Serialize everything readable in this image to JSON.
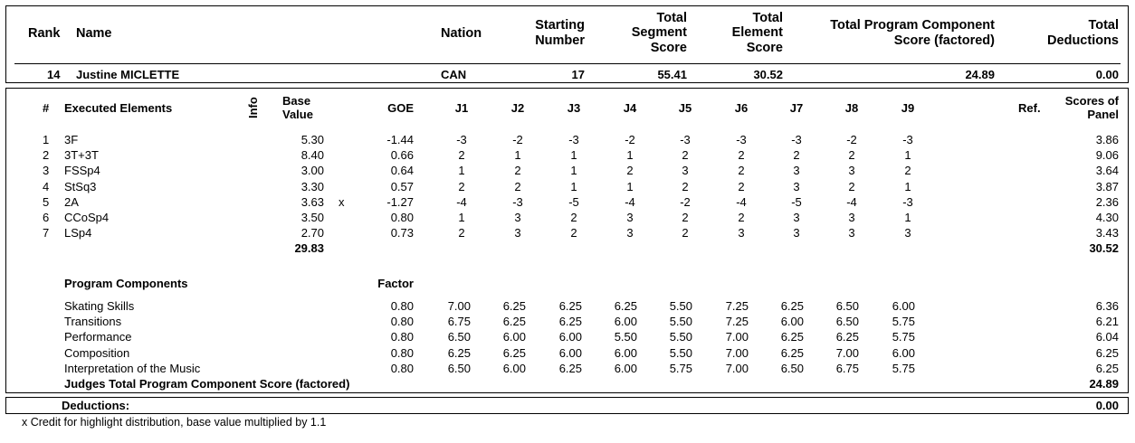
{
  "header": {
    "rank_label": "Rank",
    "name_label": "Name",
    "nation_label": "Nation",
    "starting_number_label": [
      "Starting",
      "Number"
    ],
    "tss_label": [
      "Total",
      "Segment",
      "Score"
    ],
    "tes_label": [
      "Total",
      "Element",
      "Score"
    ],
    "pcs_label": [
      "Total Program Component",
      "Score (factored)"
    ],
    "ded_label": [
      "Total",
      "Deductions"
    ]
  },
  "skater": {
    "rank": "14",
    "name": "Justine MICLETTE",
    "nation": "CAN",
    "starting_number": "17",
    "total_segment_score": "55.41",
    "total_element_score": "30.52",
    "total_pcs": "24.89",
    "total_deductions": "0.00"
  },
  "elements_header": {
    "num": "#",
    "executed": "Executed Elements",
    "info": "Info",
    "base_value": [
      "Base",
      "Value"
    ],
    "goe": "GOE",
    "judges": [
      "J1",
      "J2",
      "J3",
      "J4",
      "J5",
      "J6",
      "J7",
      "J8",
      "J9"
    ],
    "ref": "Ref.",
    "scores_of_panel": [
      "Scores of",
      "Panel"
    ]
  },
  "elements": [
    {
      "num": "1",
      "name": "3F",
      "info": "",
      "base": "5.30",
      "goe": "-1.44",
      "j": [
        "-3",
        "-2",
        "-3",
        "-2",
        "-3",
        "-3",
        "-3",
        "-2",
        "-3"
      ],
      "score": "3.86"
    },
    {
      "num": "2",
      "name": "3T+3T",
      "info": "",
      "base": "8.40",
      "goe": "0.66",
      "j": [
        "2",
        "1",
        "1",
        "1",
        "2",
        "2",
        "2",
        "2",
        "1"
      ],
      "score": "9.06"
    },
    {
      "num": "3",
      "name": "FSSp4",
      "info": "",
      "base": "3.00",
      "goe": "0.64",
      "j": [
        "1",
        "2",
        "1",
        "2",
        "3",
        "2",
        "3",
        "3",
        "2"
      ],
      "score": "3.64"
    },
    {
      "num": "4",
      "name": "StSq3",
      "info": "",
      "base": "3.30",
      "goe": "0.57",
      "j": [
        "2",
        "2",
        "1",
        "1",
        "2",
        "2",
        "3",
        "2",
        "1"
      ],
      "score": "3.87"
    },
    {
      "num": "5",
      "name": "2A",
      "info": "x",
      "base": "3.63",
      "goe": "-1.27",
      "j": [
        "-4",
        "-3",
        "-5",
        "-4",
        "-2",
        "-4",
        "-5",
        "-4",
        "-3"
      ],
      "score": "2.36"
    },
    {
      "num": "6",
      "name": "CCoSp4",
      "info": "",
      "base": "3.50",
      "goe": "0.80",
      "j": [
        "1",
        "3",
        "2",
        "3",
        "2",
        "2",
        "3",
        "3",
        "1"
      ],
      "score": "4.30"
    },
    {
      "num": "7",
      "name": "LSp4",
      "info": "",
      "base": "2.70",
      "goe": "0.73",
      "j": [
        "2",
        "3",
        "2",
        "3",
        "2",
        "3",
        "3",
        "3",
        "3"
      ],
      "score": "3.43"
    }
  ],
  "elements_total_base": "29.83",
  "elements_total_score": "30.52",
  "pc_header": {
    "title": "Program Components",
    "factor": "Factor"
  },
  "components": [
    {
      "name": "Skating Skills",
      "factor": "0.80",
      "j": [
        "7.00",
        "6.25",
        "6.25",
        "6.25",
        "5.50",
        "7.25",
        "6.25",
        "6.50",
        "6.00"
      ],
      "score": "6.36"
    },
    {
      "name": "Transitions",
      "factor": "0.80",
      "j": [
        "6.75",
        "6.25",
        "6.25",
        "6.00",
        "5.50",
        "7.25",
        "6.00",
        "6.50",
        "5.75"
      ],
      "score": "6.21"
    },
    {
      "name": "Performance",
      "factor": "0.80",
      "j": [
        "6.50",
        "6.00",
        "6.00",
        "5.50",
        "5.50",
        "7.00",
        "6.25",
        "6.25",
        "5.75"
      ],
      "score": "6.04"
    },
    {
      "name": "Composition",
      "factor": "0.80",
      "j": [
        "6.25",
        "6.25",
        "6.00",
        "6.00",
        "5.50",
        "7.00",
        "6.25",
        "7.00",
        "6.00"
      ],
      "score": "6.25"
    },
    {
      "name": "Interpretation of the Music",
      "factor": "0.80",
      "j": [
        "6.50",
        "6.00",
        "6.25",
        "6.00",
        "5.75",
        "7.00",
        "6.50",
        "6.75",
        "5.75"
      ],
      "score": "6.25"
    }
  ],
  "pcs_total_label": "Judges Total Program Component Score (factored)",
  "pcs_total": "24.89",
  "deductions_label": "Deductions:",
  "deductions_value": "0.00",
  "footnote": "x Credit for highlight distribution, base value multiplied by 1.1"
}
